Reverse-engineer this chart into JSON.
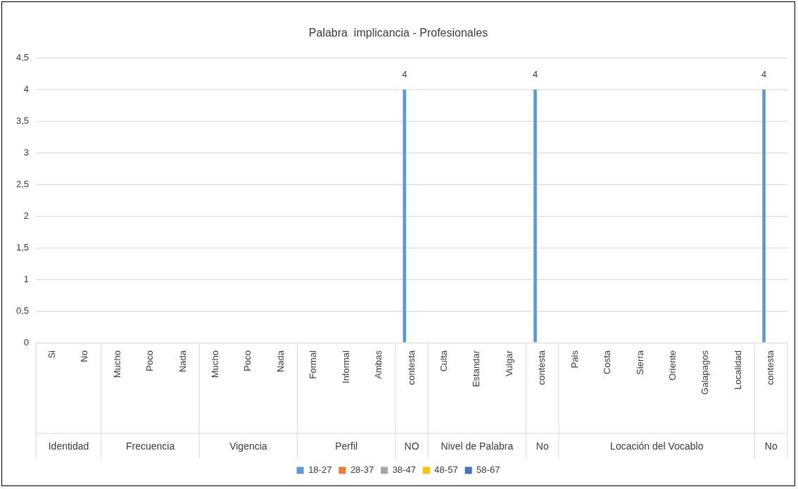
{
  "chart_data": {
    "type": "bar",
    "title": "Palabra  implicancia - Profesionales",
    "categories": [
      "Si",
      "No",
      "Mucho",
      "Poco",
      "Nada",
      "Mucho",
      "Poco",
      "Nada",
      "Formal",
      "Informal",
      "Ambas",
      "contesta",
      "Culta",
      "Estandar",
      "Vulgar",
      "contesta",
      "Pais",
      "Costa",
      "Sierra",
      "Oriente",
      "Galapagos",
      "Localidad",
      "contesta"
    ],
    "annotations": [
      "Identidad",
      "Frecuencia",
      "Vigencia",
      "Perfil",
      "NO",
      "Nivel de Palabra",
      "No",
      "Locación del Vocablo",
      "No"
    ],
    "series": [
      {
        "name": "18-27",
        "color": "#5b9bd5",
        "values": [
          0,
          0,
          0,
          0,
          0,
          0,
          0,
          0,
          0,
          0,
          0,
          4,
          0,
          0,
          0,
          4,
          0,
          0,
          0,
          0,
          0,
          0,
          4
        ],
        "value_labels": [
          null,
          null,
          null,
          null,
          null,
          null,
          null,
          null,
          null,
          null,
          null,
          "4",
          null,
          null,
          null,
          "4",
          null,
          null,
          null,
          null,
          null,
          null,
          "4"
        ]
      },
      {
        "name": "28-37",
        "color": "#ed7d31",
        "values": [
          0,
          0,
          0,
          0,
          0,
          0,
          0,
          0,
          0,
          0,
          0,
          0,
          0,
          0,
          0,
          0,
          0,
          0,
          0,
          0,
          0,
          0,
          0
        ]
      },
      {
        "name": "38-47",
        "color": "#a5a5a5",
        "values": [
          0,
          0,
          0,
          0,
          0,
          0,
          0,
          0,
          0,
          0,
          0,
          0,
          0,
          0,
          0,
          0,
          0,
          0,
          0,
          0,
          0,
          0,
          0
        ]
      },
      {
        "name": "48-57",
        "color": "#ffc000",
        "values": [
          0,
          0,
          0,
          0,
          0,
          0,
          0,
          0,
          0,
          0,
          0,
          0,
          0,
          0,
          0,
          0,
          0,
          0,
          0,
          0,
          0,
          0,
          0
        ]
      },
      {
        "name": "58-67",
        "color": "#4472c4",
        "values": [
          0,
          0,
          0,
          0,
          0,
          0,
          0,
          0,
          0,
          0,
          0,
          0,
          0,
          0,
          0,
          0,
          0,
          0,
          0,
          0,
          0,
          0,
          0
        ]
      }
    ],
    "ylim": [
      0,
      4.5
    ],
    "yticks": [
      0,
      {
        "value": 0.5,
        "label": "0,5"
      },
      1,
      {
        "value": 1.5,
        "label": "1,5"
      },
      2,
      {
        "value": 2.5,
        "label": "2,5"
      },
      3,
      {
        "value": 3.5,
        "label": "3,5"
      },
      4,
      {
        "value": 4.5,
        "label": "4,5"
      }
    ],
    "grid": "y",
    "legend": "bottom"
  }
}
